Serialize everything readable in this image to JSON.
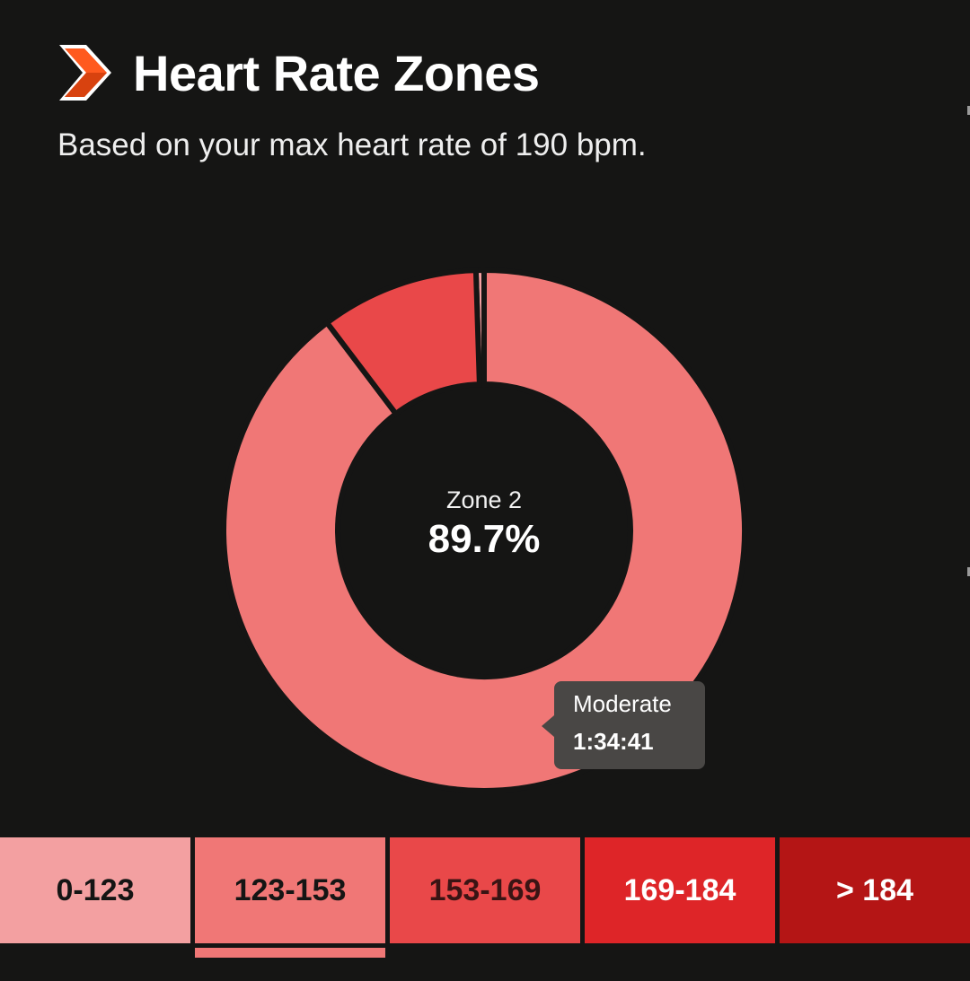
{
  "header": {
    "title": "Heart Rate Zones",
    "subtitle": "Based on your max heart rate of 190 bpm.",
    "icon": "chevron-right-icon",
    "icon_colors": [
      "#ff5a1f",
      "#d8420f"
    ]
  },
  "chart_data": {
    "type": "pie",
    "variant": "donut",
    "unit": "%",
    "slices": [
      {
        "label": "0-123",
        "value": 0.5,
        "color": "#f3a0a1"
      },
      {
        "label": "123-153",
        "value": 89.7,
        "color": "#f07776"
      },
      {
        "label": "153-169",
        "value": 9.8,
        "color": "#e94849"
      }
    ],
    "center": {
      "label": "Zone 2",
      "value": "89.7%"
    },
    "tooltip": {
      "label": "Moderate",
      "value": "1:34:41"
    }
  },
  "legend": {
    "selected_index": 1,
    "zones": [
      {
        "label": "0-123",
        "bg": "#f3a0a1",
        "fg": "#151514"
      },
      {
        "label": "123-153",
        "bg": "#f07776",
        "fg": "#151514"
      },
      {
        "label": "153-169",
        "bg": "#e94849",
        "fg": "#3a1414"
      },
      {
        "label": "169-184",
        "bg": "#de2528",
        "fg": "#ffffff"
      },
      {
        "label": "> 184",
        "bg": "#b41515",
        "fg": "#ffffff"
      }
    ]
  },
  "colors": {
    "background": "#151514",
    "tooltip_bg": "#494745"
  }
}
